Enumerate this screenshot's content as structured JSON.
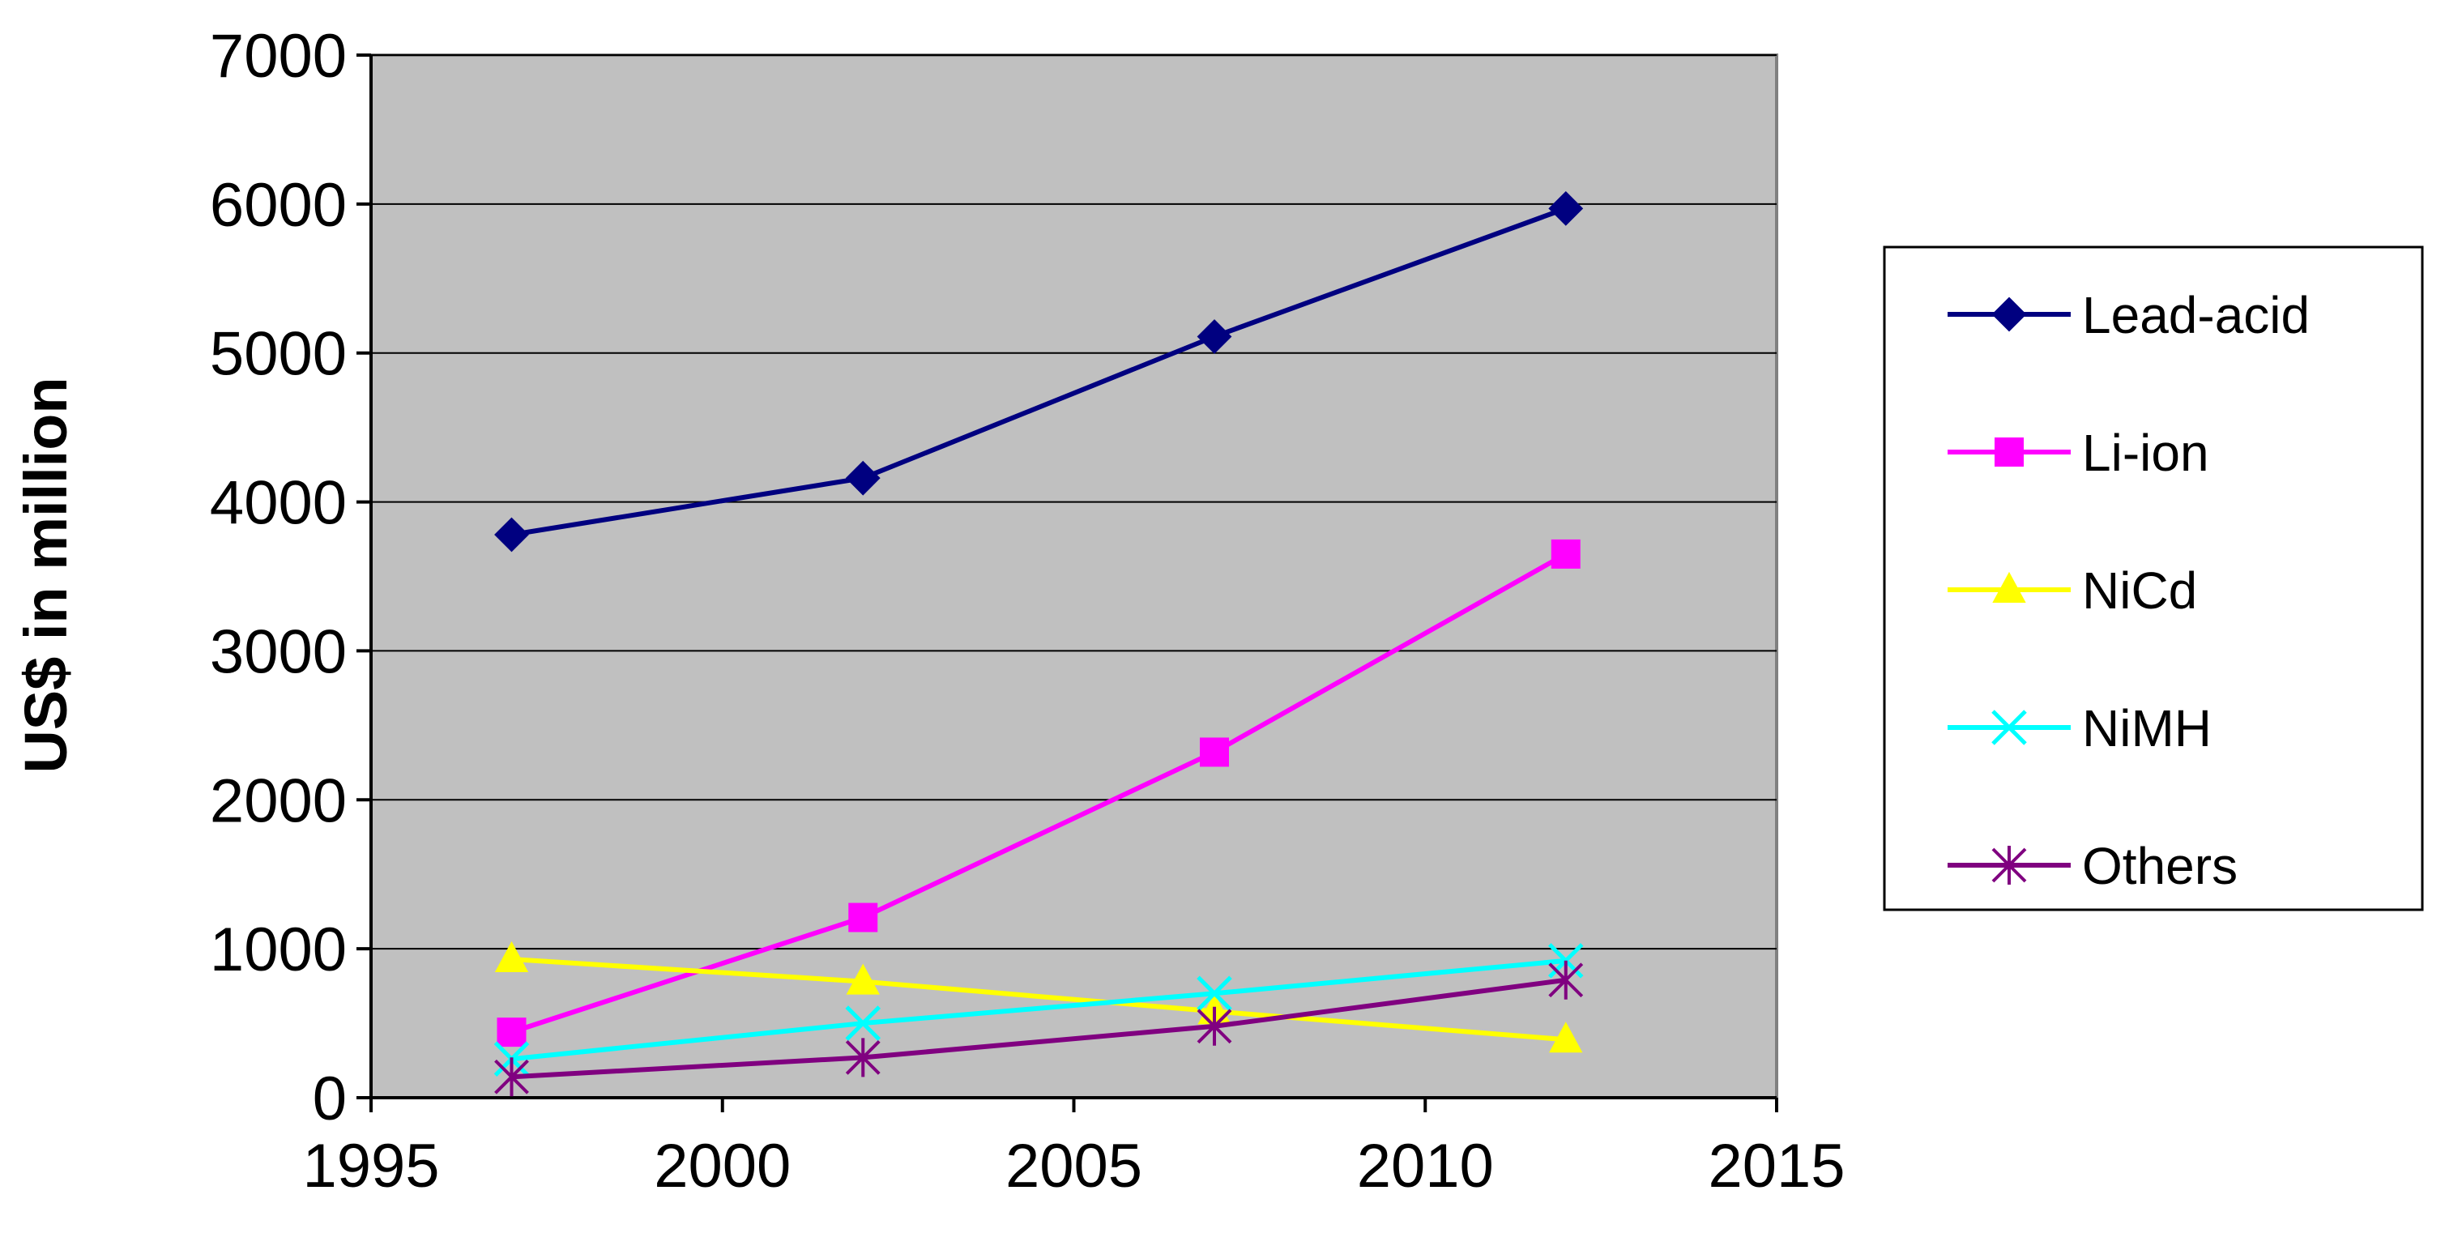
{
  "chart_data": {
    "type": "line",
    "title": "",
    "xlabel": "",
    "ylabel": "US$ in million",
    "xlim": [
      1995,
      2015
    ],
    "ylim": [
      0,
      7000
    ],
    "x_ticks": [
      1995,
      2000,
      2005,
      2010,
      2015
    ],
    "y_ticks": [
      0,
      1000,
      2000,
      3000,
      4000,
      5000,
      6000,
      7000
    ],
    "x": [
      1997,
      2002,
      2007,
      2012
    ],
    "grid": "horizontal",
    "legend_position": "right",
    "plot_background": "#c0c0c0",
    "series": [
      {
        "name": "Lead-acid",
        "values": [
          3780,
          4160,
          5110,
          5970
        ],
        "color": "#000080",
        "marker": "diamond"
      },
      {
        "name": "Li-ion",
        "values": [
          440,
          1210,
          2320,
          3650
        ],
        "color": "#ff00ff",
        "marker": "square"
      },
      {
        "name": "NiCd",
        "values": [
          930,
          780,
          580,
          390
        ],
        "color": "#ffff00",
        "marker": "triangle"
      },
      {
        "name": "NiMH",
        "values": [
          260,
          500,
          700,
          920
        ],
        "color": "#00ffff",
        "marker": "x"
      },
      {
        "name": "Others",
        "values": [
          140,
          270,
          480,
          790
        ],
        "color": "#800080",
        "marker": "star"
      }
    ]
  }
}
